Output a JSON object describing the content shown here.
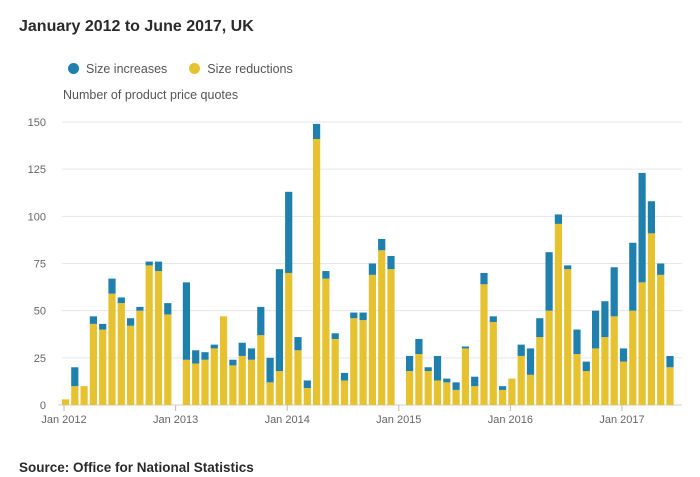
{
  "title": "January 2012 to June 2017, UK",
  "source": "Source: Office for National Statistics",
  "colors": {
    "increases": "#1f7fad",
    "reductions": "#e7c230"
  },
  "chart_data": {
    "type": "bar",
    "stacked": true,
    "ylabel": "Number of product price quotes",
    "ylim": [
      0,
      150
    ],
    "yticks": [
      0,
      25,
      50,
      75,
      100,
      125,
      150
    ],
    "xtick_labels": [
      "Jan 2012",
      "Jan 2013",
      "Jan 2014",
      "Jan 2015",
      "Jan 2016",
      "Jan 2017"
    ],
    "grid": true,
    "legend": "top-left",
    "start": "Jan 2012",
    "end": "Jun 2017",
    "series": [
      {
        "name": "Size reductions",
        "values": [
          3,
          10,
          10,
          43,
          40,
          59,
          54,
          42,
          50,
          74,
          71,
          48,
          0,
          24,
          22,
          24,
          30,
          47,
          21,
          26,
          24,
          37,
          12,
          18,
          70,
          29,
          9,
          141,
          67,
          35,
          13,
          46,
          45,
          69,
          82,
          72,
          0,
          18,
          27,
          18,
          13,
          12,
          8,
          30,
          10,
          64,
          44,
          8,
          14,
          26,
          16,
          36,
          50,
          96,
          72,
          27,
          18,
          30,
          36,
          47,
          23,
          50,
          65,
          91,
          69,
          20
        ]
      },
      {
        "name": "Size increases",
        "values": [
          0,
          10,
          0,
          4,
          3,
          8,
          3,
          4,
          2,
          2,
          5,
          6,
          0,
          41,
          7,
          4,
          2,
          0,
          3,
          7,
          6,
          15,
          13,
          54,
          43,
          7,
          4,
          8,
          4,
          3,
          4,
          3,
          4,
          6,
          6,
          7,
          0,
          8,
          8,
          2,
          13,
          2,
          4,
          1,
          5,
          6,
          3,
          2,
          0,
          6,
          14,
          10,
          31,
          5,
          2,
          13,
          5,
          20,
          19,
          26,
          7,
          36,
          58,
          17,
          6,
          6
        ]
      }
    ]
  }
}
